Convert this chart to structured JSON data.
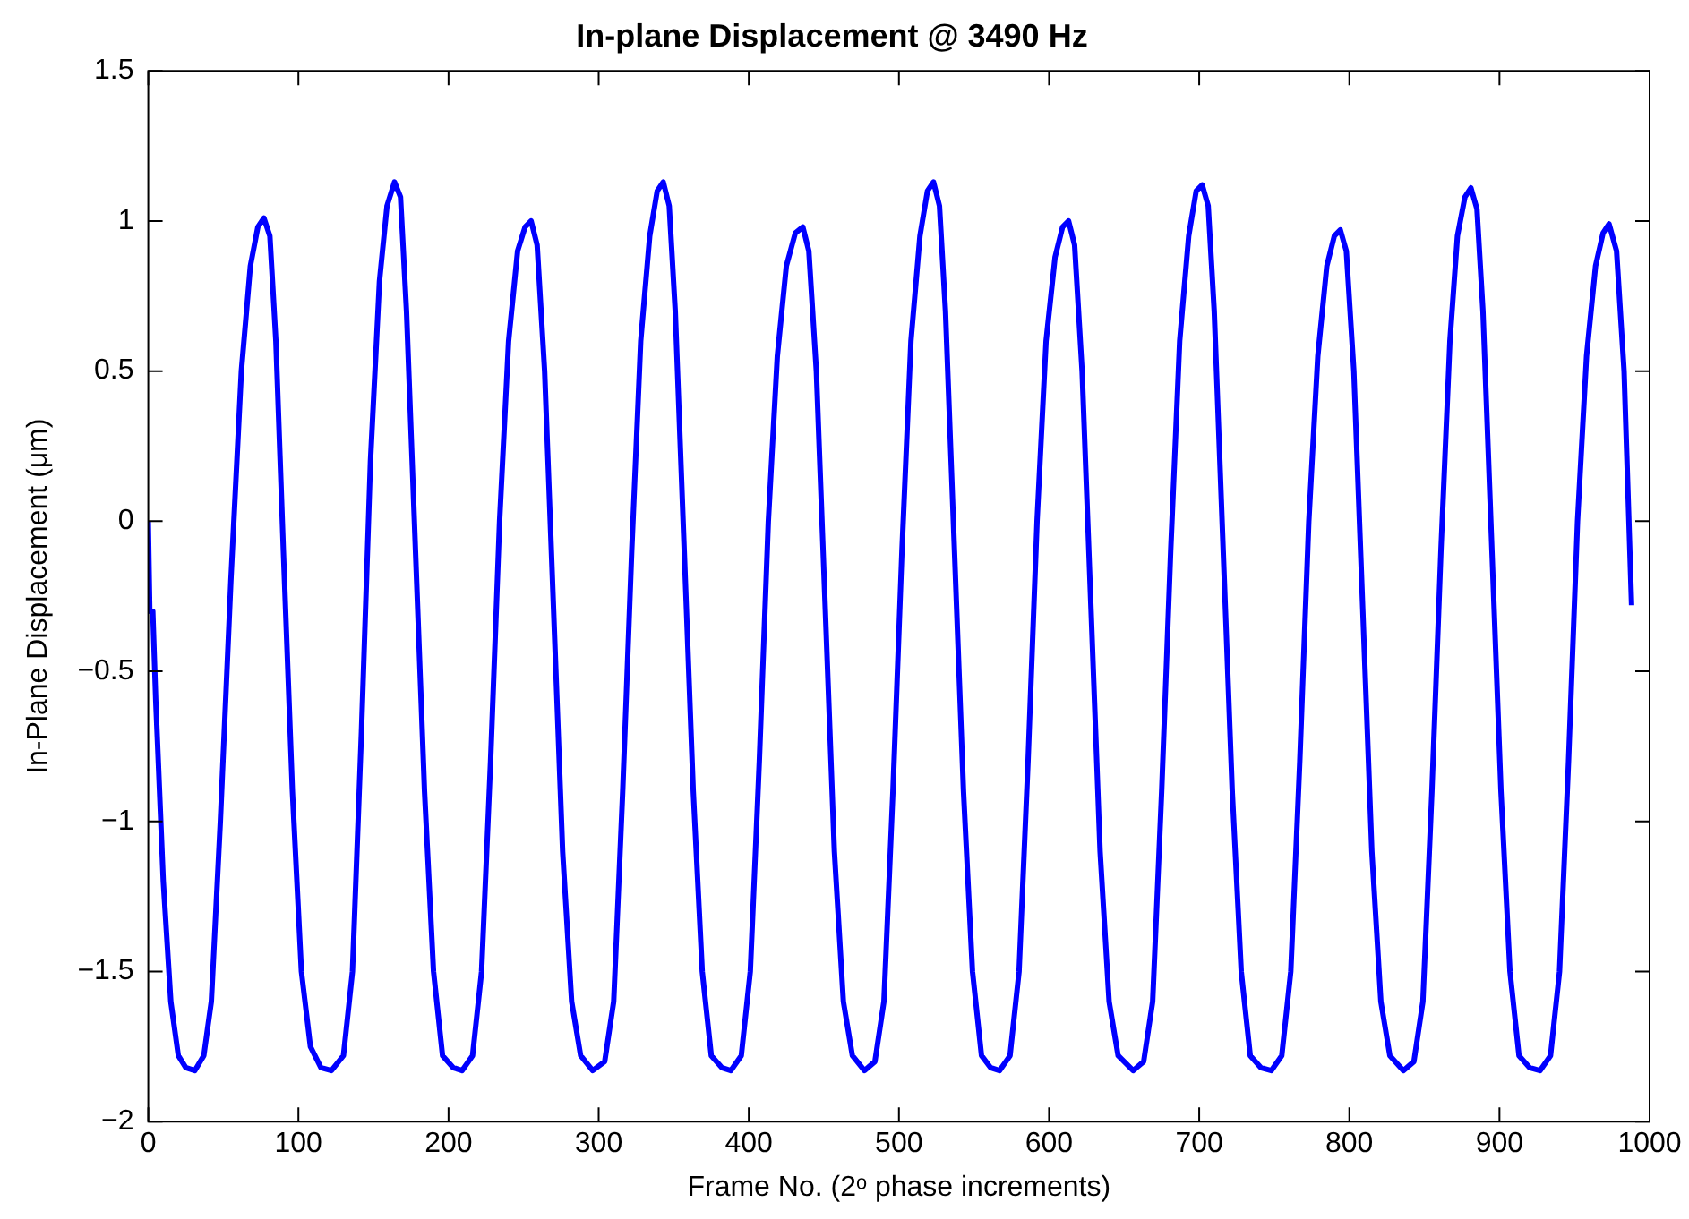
{
  "chart_data": {
    "type": "line",
    "title": "In-plane Displacement @ 3490 Hz",
    "xlabel": "Frame No. (2ᵒ phase increments)",
    "ylabel": "In-Plane Displacement (μm)",
    "xlim": [
      0,
      1000
    ],
    "xticks": [
      0,
      100,
      200,
      300,
      400,
      500,
      600,
      700,
      800,
      900,
      1000
    ],
    "ylim": [
      -2,
      1.5
    ],
    "yticks": [
      -2,
      -1.5,
      -1,
      -0.5,
      0,
      0.5,
      1,
      1.5
    ],
    "grid": false,
    "legend": false,
    "marker": "none",
    "line_style": "solid",
    "series": [
      {
        "color": "#0000ff",
        "x": [
          0,
          1,
          3,
          5,
          10,
          15,
          20,
          25,
          31,
          37,
          42,
          48,
          55,
          62,
          68,
          73,
          77,
          81,
          85,
          90,
          96,
          102,
          108,
          115,
          122,
          130,
          136,
          142,
          148,
          154,
          159,
          164,
          168,
          172,
          178,
          184,
          190,
          196,
          203,
          209,
          216,
          222,
          228,
          234,
          240,
          246,
          251,
          255,
          259,
          264,
          270,
          276,
          282,
          288,
          296,
          304,
          310,
          316,
          322,
          328,
          334,
          339,
          343,
          347,
          351,
          357,
          363,
          369,
          375,
          382,
          388,
          395,
          401,
          407,
          413,
          419,
          425,
          431,
          436,
          440,
          445,
          451,
          457,
          463,
          469,
          477,
          484,
          490,
          496,
          502,
          508,
          514,
          519,
          523,
          527,
          531,
          537,
          543,
          549,
          555,
          561,
          567,
          574,
          580,
          586,
          592,
          598,
          604,
          609,
          613,
          617,
          622,
          628,
          634,
          640,
          646,
          656,
          663,
          669,
          675,
          681,
          687,
          693,
          698,
          702,
          706,
          710,
          716,
          722,
          728,
          734,
          741,
          748,
          755,
          761,
          767,
          773,
          779,
          785,
          790,
          794,
          798,
          803,
          809,
          815,
          821,
          827,
          836,
          843,
          849,
          855,
          861,
          867,
          872,
          877,
          881,
          885,
          889,
          895,
          901,
          907,
          913,
          920,
          927,
          934,
          940,
          946,
          952,
          958,
          964,
          969,
          973,
          978,
          983,
          988
        ],
        "values": [
          0,
          -0.3,
          -0.3,
          -0.6,
          -1.2,
          -1.6,
          -1.78,
          -1.82,
          -1.83,
          -1.78,
          -1.6,
          -1.0,
          -0.2,
          0.5,
          0.85,
          0.98,
          1.01,
          0.95,
          0.6,
          -0.1,
          -0.9,
          -1.5,
          -1.75,
          -1.82,
          -1.83,
          -1.78,
          -1.5,
          -0.7,
          0.2,
          0.8,
          1.05,
          1.13,
          1.08,
          0.7,
          -0.1,
          -0.9,
          -1.5,
          -1.78,
          -1.82,
          -1.83,
          -1.78,
          -1.5,
          -0.8,
          0.0,
          0.6,
          0.9,
          0.98,
          1.0,
          0.92,
          0.5,
          -0.3,
          -1.1,
          -1.6,
          -1.78,
          -1.83,
          -1.8,
          -1.6,
          -0.9,
          -0.1,
          0.6,
          0.95,
          1.1,
          1.13,
          1.05,
          0.7,
          -0.1,
          -0.9,
          -1.5,
          -1.78,
          -1.82,
          -1.83,
          -1.78,
          -1.5,
          -0.8,
          0.0,
          0.55,
          0.85,
          0.96,
          0.98,
          0.9,
          0.5,
          -0.3,
          -1.1,
          -1.6,
          -1.78,
          -1.83,
          -1.8,
          -1.6,
          -0.9,
          -0.1,
          0.6,
          0.95,
          1.1,
          1.13,
          1.05,
          0.7,
          -0.1,
          -0.9,
          -1.5,
          -1.78,
          -1.82,
          -1.83,
          -1.78,
          -1.5,
          -0.8,
          0.0,
          0.6,
          0.88,
          0.98,
          1.0,
          0.92,
          0.5,
          -0.3,
          -1.1,
          -1.6,
          -1.78,
          -1.83,
          -1.8,
          -1.6,
          -0.9,
          -0.1,
          0.6,
          0.95,
          1.1,
          1.12,
          1.05,
          0.7,
          -0.1,
          -0.9,
          -1.5,
          -1.78,
          -1.82,
          -1.83,
          -1.78,
          -1.5,
          -0.8,
          0.0,
          0.55,
          0.85,
          0.95,
          0.97,
          0.9,
          0.5,
          -0.3,
          -1.1,
          -1.6,
          -1.78,
          -1.83,
          -1.8,
          -1.6,
          -0.9,
          -0.1,
          0.6,
          0.95,
          1.08,
          1.11,
          1.04,
          0.7,
          -0.1,
          -0.9,
          -1.5,
          -1.78,
          -1.82,
          -1.83,
          -1.78,
          -1.5,
          -0.8,
          0.0,
          0.55,
          0.85,
          0.96,
          0.99,
          0.9,
          0.5,
          -0.28
        ]
      }
    ]
  }
}
